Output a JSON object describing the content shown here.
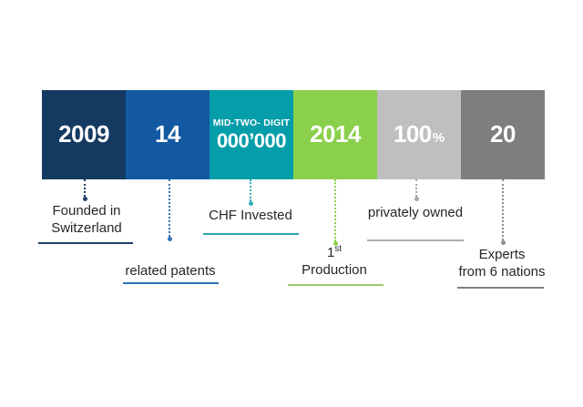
{
  "canvas": {
    "background": "#ffffff"
  },
  "blocks": [
    {
      "value": "2009",
      "color": "#143a61"
    },
    {
      "value": "14",
      "color": "#1359a2"
    },
    {
      "value_small": "MID-TWO- DIGIT",
      "value": "000’000",
      "color": "#069daa"
    },
    {
      "value": "2014",
      "color": "#8bd04c"
    },
    {
      "value": "100",
      "value_suffix": "%",
      "color": "#bfbfbf"
    },
    {
      "value": "20",
      "color": "#7e7e7e"
    }
  ],
  "labels": [
    {
      "line1": "Founded in",
      "line2": "Switzerland",
      "underline_color": "#1f4068",
      "connector_color": "#1f4068"
    },
    {
      "line1": "related patents",
      "underline_color": "#2e75b6",
      "connector_color": "#2e75b6"
    },
    {
      "line1": "CHF Invested",
      "underline_color": "#2ea3b2",
      "connector_color": "#35aebc"
    },
    {
      "line1": "1",
      "line1_sup": "st",
      "line2": "Production",
      "underline_color": "#9dc96a",
      "connector_color": "#92d050"
    },
    {
      "line1": "privately owned",
      "underline_color": "#ababab",
      "connector_color": "#a6a6a6"
    },
    {
      "line1": "Experts",
      "line2": "from 6 nations",
      "underline_color": "#808080",
      "connector_color": "#8c8c8c"
    }
  ]
}
